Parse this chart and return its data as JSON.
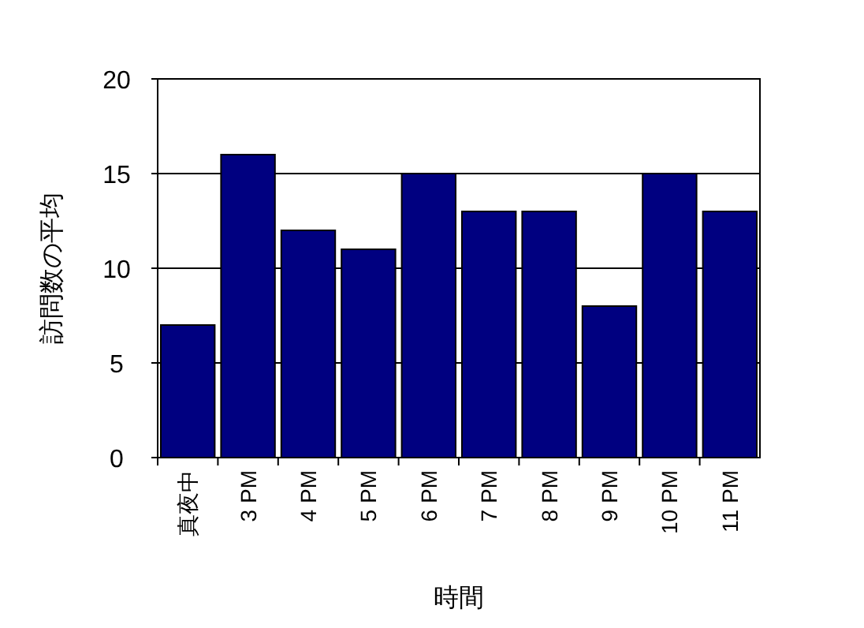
{
  "chart_data": {
    "type": "bar",
    "xlabel": "時間",
    "ylabel": "訪問数の平均",
    "categories": [
      "真夜中",
      "3 PM",
      "4 PM",
      "5 PM",
      "6 PM",
      "7 PM",
      "8 PM",
      "9 PM",
      "10 PM",
      "11 PM"
    ],
    "values": [
      7,
      16,
      12,
      11,
      15,
      13,
      13,
      8,
      15,
      13
    ],
    "color": "#000080",
    "ylim": [
      0,
      20
    ],
    "yticks": [
      0,
      5,
      10,
      15,
      20
    ],
    "grid": "y"
  }
}
